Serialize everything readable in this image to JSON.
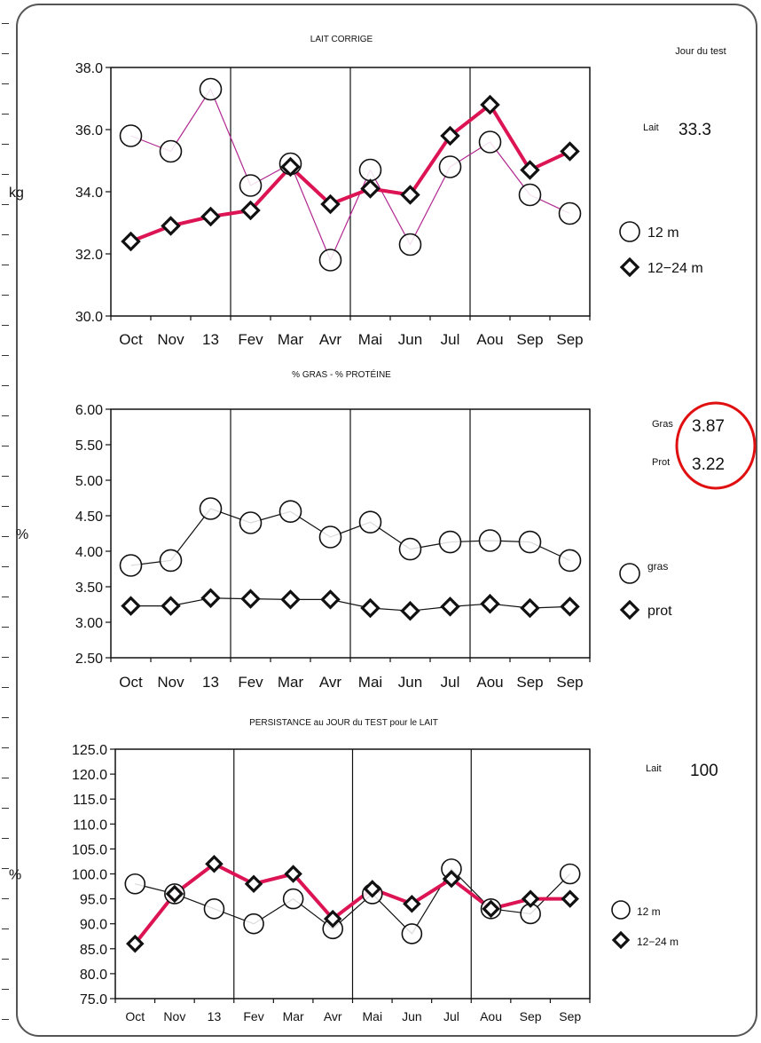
{
  "header": {
    "jour_du_test": "Jour du test"
  },
  "colors": {
    "twelve_m": "#b0278f",
    "twelve_24_m": "#dc1454",
    "black": "#111111",
    "highlight_circle": "#e01010"
  },
  "chart_data": [
    {
      "type": "line",
      "title": "LAIT CORRIGE",
      "ylabel": "kg",
      "ylim": [
        30.0,
        38.0
      ],
      "yticks": [
        "38.0",
        "36.0",
        "34.0",
        "32.0",
        "30.0"
      ],
      "ytick_values": [
        38,
        36,
        34,
        32,
        30
      ],
      "unit_at": 34,
      "categories": [
        "Oct",
        "Nov",
        "13",
        "Fev",
        "Mar",
        "Avr",
        "Mai",
        "Jun",
        "Jul",
        "Aou",
        "Sep",
        "Sep"
      ],
      "series": [
        {
          "name": "12 m",
          "marker": "circle",
          "color": "#b0278f",
          "width": 1.2,
          "values": [
            35.8,
            35.3,
            37.3,
            34.2,
            34.9,
            31.8,
            34.7,
            32.3,
            34.8,
            35.6,
            33.9,
            33.3
          ]
        },
        {
          "name": "12−24 m",
          "marker": "diamond",
          "color": "#dc1454",
          "width": 4,
          "values": [
            32.4,
            32.9,
            33.2,
            33.4,
            34.8,
            33.6,
            34.1,
            33.9,
            35.8,
            36.8,
            34.7,
            35.3
          ]
        }
      ],
      "side": [
        {
          "label": "Lait",
          "value": "33.3"
        }
      ],
      "legend": [
        {
          "label": "12 m",
          "marker": "circle"
        },
        {
          "label": "12−24 m",
          "marker": "diamond"
        }
      ]
    },
    {
      "type": "line",
      "title": "% GRAS - % PROTÉINE",
      "ylabel": "%",
      "ylim": [
        2.5,
        6.0
      ],
      "yticks": [
        "6.00",
        "5.50",
        "5.00",
        "4.50",
        "4.00",
        "3.50",
        "3.00",
        "2.50"
      ],
      "ytick_values": [
        6,
        5.5,
        5,
        4.5,
        4,
        3.5,
        3,
        2.5
      ],
      "unit_at": 4.25,
      "categories": [
        "Oct",
        "Nov",
        "13",
        "Fev",
        "Mar",
        "Avr",
        "Mai",
        "Jun",
        "Jul",
        "Aou",
        "Sep",
        "Sep"
      ],
      "series": [
        {
          "name": "gras",
          "marker": "circle",
          "color": "#111111",
          "width": 1.2,
          "values": [
            3.8,
            3.87,
            4.6,
            4.4,
            4.56,
            4.2,
            4.41,
            4.03,
            4.13,
            4.15,
            4.13,
            3.87
          ]
        },
        {
          "name": "prot",
          "marker": "diamond",
          "color": "#111111",
          "width": 1.2,
          "values": [
            3.23,
            3.23,
            3.34,
            3.33,
            3.32,
            3.32,
            3.2,
            3.16,
            3.22,
            3.26,
            3.2,
            3.22
          ]
        }
      ],
      "side": [
        {
          "label": "Gras",
          "value": "3.87"
        },
        {
          "label": "Prot",
          "value": "3.22"
        }
      ],
      "legend": [
        {
          "label": "gras",
          "marker": "circle"
        },
        {
          "label": "prot",
          "marker": "diamond"
        }
      ]
    },
    {
      "type": "line",
      "title": "PERSISTANCE au JOUR du TEST pour le LAIT",
      "ylabel": "%",
      "ylim": [
        75.0,
        125.0
      ],
      "yticks": [
        "125.0",
        "120.0",
        "115.0",
        "110.0",
        "105.0",
        "100.0",
        "95.0",
        "90.0",
        "85.0",
        "80.0",
        "75.0"
      ],
      "ytick_values": [
        125,
        120,
        115,
        110,
        105,
        100,
        95,
        90,
        85,
        80,
        75
      ],
      "unit_at": 100,
      "categories": [
        "Oct",
        "Nov",
        "13",
        "Fev",
        "Mar",
        "Avr",
        "Mai",
        "Jun",
        "Jul",
        "Aou",
        "Sep",
        "Sep"
      ],
      "series": [
        {
          "name": "12 m",
          "marker": "circle",
          "color": "#111111",
          "width": 1.2,
          "values": [
            98,
            96,
            93,
            90,
            95,
            89,
            96,
            88,
            101,
            93,
            92,
            100
          ]
        },
        {
          "name": "12−24 m",
          "marker": "diamond",
          "color": "#dc1454",
          "width": 4,
          "values": [
            86,
            96,
            102,
            98,
            100,
            91,
            97,
            94,
            99,
            93,
            95,
            95
          ]
        }
      ],
      "side": [
        {
          "label": "Lait",
          "value": "100"
        }
      ],
      "legend": [
        {
          "label": "12 m",
          "marker": "circle"
        },
        {
          "label": "12−24 m",
          "marker": "diamond"
        }
      ]
    }
  ]
}
